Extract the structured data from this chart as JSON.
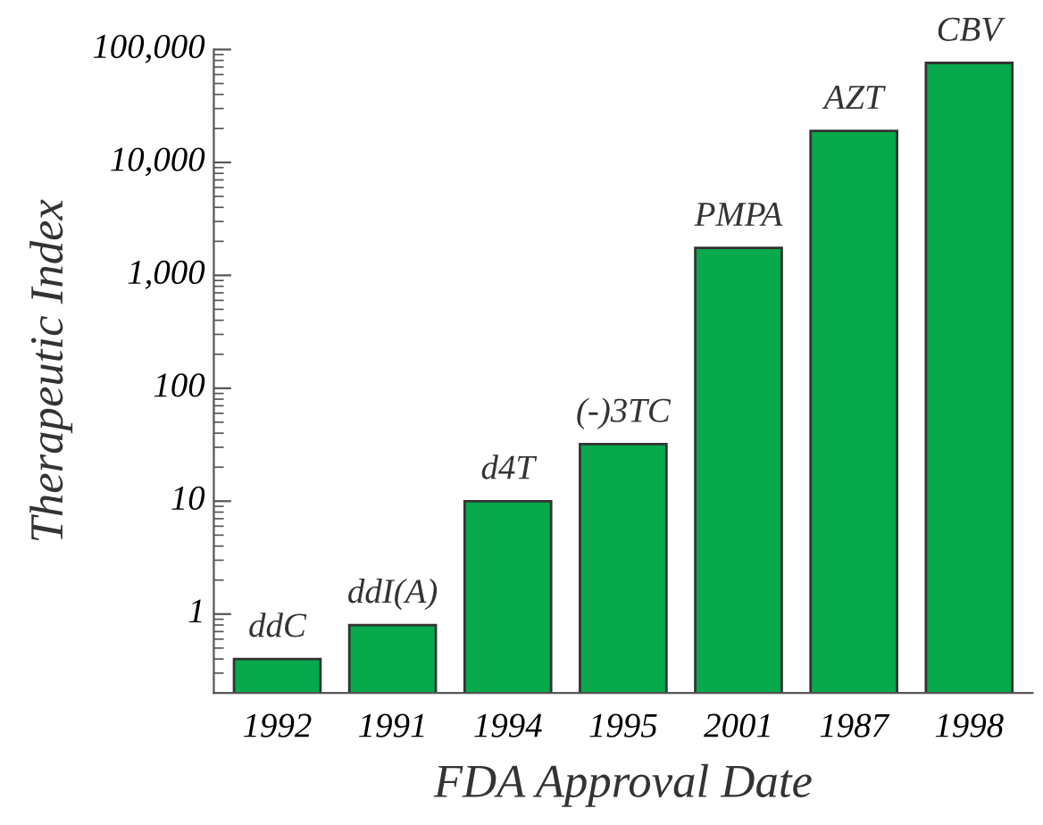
{
  "chart_data": {
    "type": "bar",
    "xlabel": "FDA Approval Date",
    "ylabel": "Therapeutic Index",
    "categories": [
      "1992",
      "1991",
      "1994",
      "1995",
      "2001",
      "1987",
      "1998"
    ],
    "values": [
      0.4,
      0.8,
      10,
      32,
      1750,
      19000,
      76000
    ],
    "color": "#06a94b",
    "log": "y",
    "ylim": [
      0.2,
      100000
    ],
    "yticks": [
      1,
      10,
      100,
      {
        "value": 1000,
        "label": "1,000"
      },
      {
        "value": 10000,
        "label": "10,000"
      },
      {
        "value": 100000,
        "label": "100,000"
      }
    ],
    "grid": false,
    "annotations": [
      {
        "text": "ddC",
        "x": "1992",
        "y": 0.4
      },
      {
        "text": "ddI(A)",
        "x": "1991",
        "y": 0.8
      },
      {
        "text": "d4T",
        "x": "1994",
        "y": 10
      },
      {
        "text": "(-)3TC",
        "x": "1995",
        "y": 32
      },
      {
        "text": "PMPA",
        "x": "2001",
        "y": 1750
      },
      {
        "text": "AZT",
        "x": "1987",
        "y": 19000
      },
      {
        "text": "CBV",
        "x": "1998",
        "y": 76000
      }
    ]
  }
}
